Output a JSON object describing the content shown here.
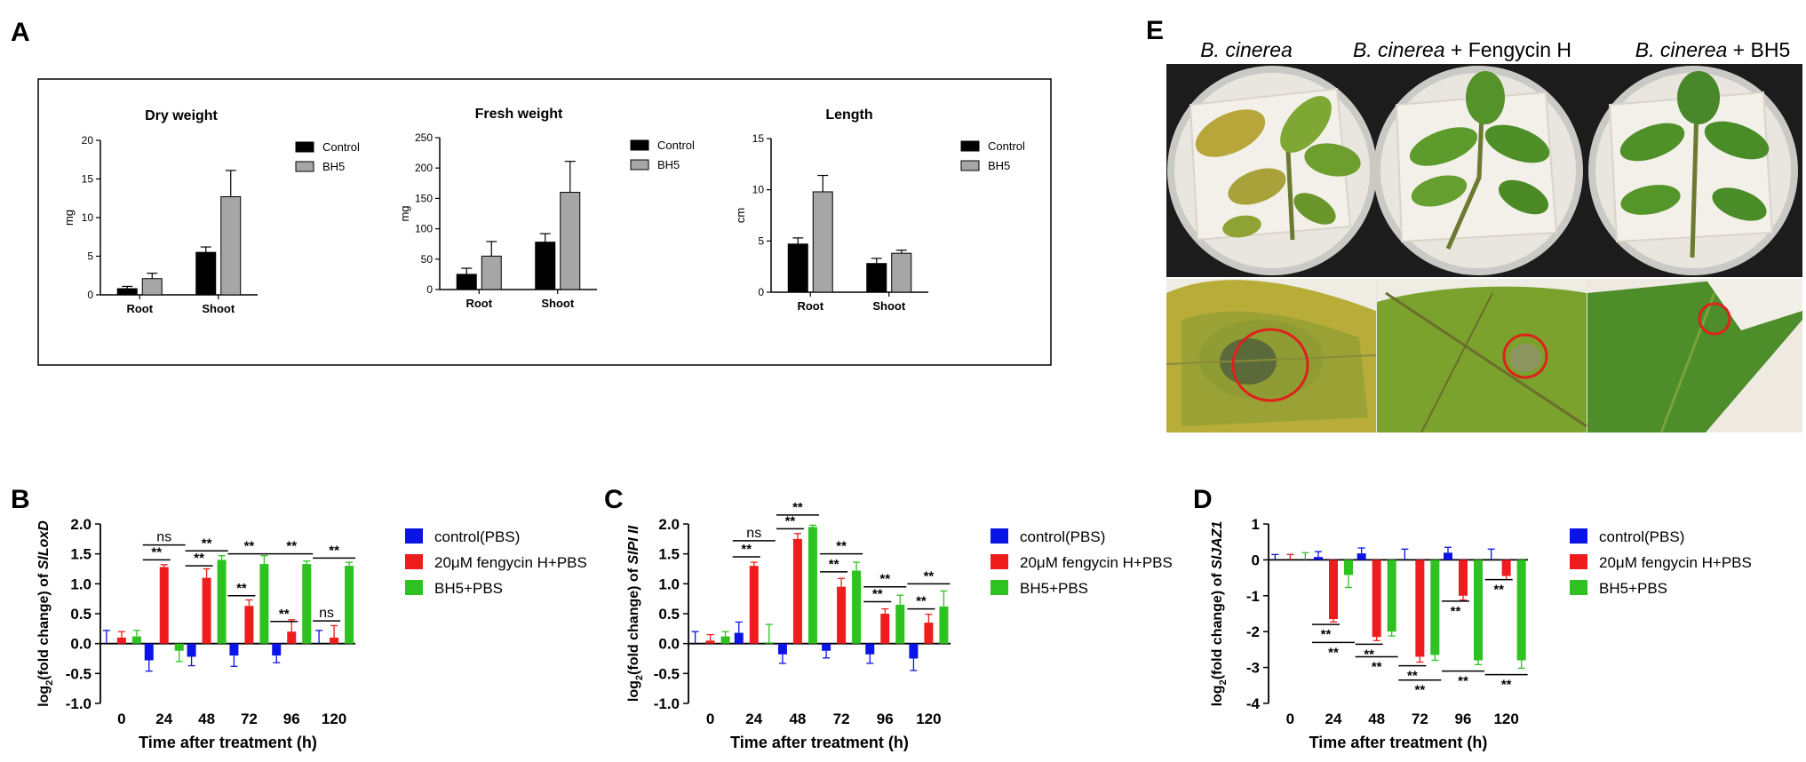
{
  "panels": {
    "A": "A",
    "B": "B",
    "C": "C",
    "D": "D",
    "E": "E"
  },
  "panel_e": {
    "column_labels": [
      {
        "italic": "B. cinerea",
        "plain": ""
      },
      {
        "italic": "B. cinerea",
        "plain": " + Fengycin H"
      },
      {
        "italic": "B. cinerea",
        "plain": " + BH5"
      }
    ],
    "colors": {
      "background_dark": "#1c1c1c",
      "leaf": "#4a8a28",
      "lesion_ring": "#e0201c",
      "paper": "#eeeae2"
    }
  },
  "chart_data": [
    {
      "id": "dry",
      "type": "bar",
      "title": "Dry weight",
      "ylabel": "mg",
      "xlabel": "",
      "ylim": [
        0,
        20
      ],
      "yticks": [
        0,
        5,
        10,
        15,
        20
      ],
      "categories": [
        "Root",
        "Shoot"
      ],
      "legend": [
        "Control",
        "BH5"
      ],
      "legend_position": "top-right",
      "colors": [
        "#000000",
        "#a6a6a6"
      ],
      "series": [
        {
          "name": "Control",
          "values": [
            0.8,
            5.5
          ],
          "errors": [
            0.3,
            0.7
          ]
        },
        {
          "name": "BH5",
          "values": [
            2.1,
            12.7
          ],
          "errors": [
            0.7,
            3.4
          ]
        }
      ]
    },
    {
      "id": "fresh",
      "type": "bar",
      "title": "Fresh weight",
      "ylabel": "mg",
      "xlabel": "",
      "ylim": [
        0,
        250
      ],
      "yticks": [
        0,
        50,
        100,
        150,
        200,
        250
      ],
      "categories": [
        "Root",
        "Shoot"
      ],
      "legend": [
        "Control",
        "BH5"
      ],
      "legend_position": "top-right",
      "colors": [
        "#000000",
        "#a6a6a6"
      ],
      "series": [
        {
          "name": "Control",
          "values": [
            25,
            78
          ],
          "errors": [
            10,
            14
          ]
        },
        {
          "name": "BH5",
          "values": [
            55,
            160
          ],
          "errors": [
            24,
            51
          ]
        }
      ]
    },
    {
      "id": "length",
      "type": "bar",
      "title": "Length",
      "ylabel": "cm",
      "xlabel": "",
      "ylim": [
        0,
        15
      ],
      "yticks": [
        0,
        5,
        10,
        15
      ],
      "categories": [
        "Root",
        "Shoot"
      ],
      "legend": [
        "Control",
        "BH5"
      ],
      "legend_position": "top-right",
      "colors": [
        "#000000",
        "#a6a6a6"
      ],
      "series": [
        {
          "name": "Control",
          "values": [
            4.7,
            2.8
          ],
          "errors": [
            0.6,
            0.5
          ]
        },
        {
          "name": "BH5",
          "values": [
            9.8,
            3.8
          ],
          "errors": [
            1.6,
            0.3
          ]
        }
      ]
    },
    {
      "id": "loxd",
      "type": "bar",
      "ylabel_pre": "log",
      "ylabel_sub": "2",
      "ylabel_post": "(fold change) of ",
      "ylabel_gene": "SlLoxD",
      "xlabel": "Time after treatment (h)",
      "ylim": [
        -1.0,
        2.0
      ],
      "yticks": [
        "2.0",
        "1.5",
        "1.0",
        "0.5",
        "0.0",
        "-0.5",
        "-1.0"
      ],
      "categories": [
        "0",
        "24",
        "48",
        "72",
        "96",
        "120"
      ],
      "legend": [
        "control(PBS)",
        "20μM fengycin H+PBS",
        "BH5+PBS"
      ],
      "legend_position": "right",
      "colors": [
        "#0a14e6",
        "#ee1c1c",
        "#2dc21f"
      ],
      "series": [
        {
          "name": "control(PBS)",
          "values": [
            0.0,
            -0.28,
            -0.22,
            -0.2,
            -0.2,
            0.0
          ],
          "errors": [
            0.22,
            0.18,
            0.15,
            0.18,
            0.12,
            0.22
          ]
        },
        {
          "name": "20μM fengycin H+PBS",
          "values": [
            0.1,
            1.28,
            1.1,
            0.63,
            0.2,
            0.1
          ],
          "errors": [
            0.1,
            0.04,
            0.15,
            0.1,
            0.2,
            0.2
          ]
        },
        {
          "name": "BH5+PBS",
          "values": [
            0.12,
            -0.12,
            1.4,
            1.33,
            1.33,
            1.3
          ],
          "errors": [
            0.1,
            0.18,
            0.07,
            0.14,
            0.05,
            0.06
          ]
        }
      ],
      "annotations": [
        {
          "label": "ns",
          "group": 1,
          "from": 0,
          "to": 2,
          "y": 1.65
        },
        {
          "label": "**",
          "group": 1,
          "from": 0,
          "to": 1,
          "y": 1.4
        },
        {
          "label": "**",
          "group": 2,
          "from": 0,
          "to": 2,
          "y": 1.55
        },
        {
          "label": "**",
          "group": 2,
          "from": 0,
          "to": 1,
          "y": 1.3
        },
        {
          "label": "**",
          "group": 3,
          "from": 0,
          "to": 2,
          "y": 1.5
        },
        {
          "label": "**",
          "group": 3,
          "from": 0,
          "to": 1,
          "y": 0.8
        },
        {
          "label": "**",
          "group": 4,
          "from": 0,
          "to": 2,
          "y": 1.5
        },
        {
          "label": "**",
          "group": 4,
          "from": 0,
          "to": 1,
          "y": 0.37
        },
        {
          "label": "**",
          "group": 5,
          "from": 0,
          "to": 2,
          "y": 1.43
        },
        {
          "label": "ns",
          "group": 5,
          "from": 0,
          "to": 1,
          "y": 0.38
        }
      ]
    },
    {
      "id": "pi2",
      "type": "bar",
      "ylabel_pre": "log",
      "ylabel_sub": "2",
      "ylabel_post": "(fold change) of ",
      "ylabel_gene": "SlPI II",
      "xlabel": "Time after treatment (h)",
      "ylim": [
        -1.0,
        2.0
      ],
      "yticks": [
        "2.0",
        "1.5",
        "1.0",
        "0.5",
        "0.0",
        "-0.5",
        "-1.0"
      ],
      "categories": [
        "0",
        "24",
        "48",
        "72",
        "96",
        "120"
      ],
      "legend": [
        "control(PBS)",
        "20μM fengycin H+PBS",
        "BH5+PBS"
      ],
      "legend_position": "right",
      "colors": [
        "#0a14e6",
        "#ee1c1c",
        "#2dc21f"
      ],
      "series": [
        {
          "name": "control(PBS)",
          "values": [
            0.0,
            0.18,
            -0.18,
            -0.12,
            -0.18,
            -0.25
          ],
          "errors": [
            0.2,
            0.18,
            0.15,
            0.12,
            0.15,
            0.2
          ]
        },
        {
          "name": "20μM fengycin H+PBS",
          "values": [
            0.05,
            1.3,
            1.75,
            0.95,
            0.5,
            0.35
          ],
          "errors": [
            0.1,
            0.06,
            0.09,
            0.14,
            0.08,
            0.14
          ]
        },
        {
          "name": "BH5+PBS",
          "values": [
            0.12,
            0.02,
            1.95,
            1.22,
            0.65,
            0.62
          ],
          "errors": [
            0.08,
            0.3,
            0.03,
            0.14,
            0.16,
            0.26
          ]
        }
      ],
      "annotations": [
        {
          "label": "ns",
          "group": 1,
          "from": 0,
          "to": 2,
          "y": 1.72
        },
        {
          "label": "**",
          "group": 1,
          "from": 0,
          "to": 1,
          "y": 1.45
        },
        {
          "label": "**",
          "group": 2,
          "from": 0,
          "to": 2,
          "y": 2.15
        },
        {
          "label": "**",
          "group": 2,
          "from": 0,
          "to": 1,
          "y": 1.92
        },
        {
          "label": "**",
          "group": 3,
          "from": 0,
          "to": 2,
          "y": 1.5
        },
        {
          "label": "**",
          "group": 3,
          "from": 0,
          "to": 1,
          "y": 1.2
        },
        {
          "label": "**",
          "group": 4,
          "from": 0,
          "to": 2,
          "y": 0.95
        },
        {
          "label": "**",
          "group": 4,
          "from": 0,
          "to": 1,
          "y": 0.7
        },
        {
          "label": "**",
          "group": 5,
          "from": 0,
          "to": 2,
          "y": 1.0
        },
        {
          "label": "**",
          "group": 5,
          "from": 0,
          "to": 1,
          "y": 0.58
        }
      ]
    },
    {
      "id": "jaz1",
      "type": "bar",
      "ylabel_pre": "log",
      "ylabel_sub": "2",
      "ylabel_post": "(fold change) of ",
      "ylabel_gene": "SlJAZ1",
      "xlabel": "Time after treatment (h)",
      "ylim": [
        -4,
        1
      ],
      "yticks": [
        "1",
        "0",
        "-1",
        "-2",
        "-3",
        "-4"
      ],
      "categories": [
        "0",
        "24",
        "48",
        "72",
        "96",
        "120"
      ],
      "legend": [
        "control(PBS)",
        "20μM fengycin H+PBS",
        "BH5+PBS"
      ],
      "legend_position": "right",
      "colors": [
        "#0a14e6",
        "#ee1c1c",
        "#2dc21f"
      ],
      "series": [
        {
          "name": "control(PBS)",
          "values": [
            0.0,
            0.08,
            0.18,
            0.0,
            0.2,
            0.0
          ],
          "errors": [
            0.15,
            0.15,
            0.15,
            0.3,
            0.15,
            0.3
          ]
        },
        {
          "name": "20μM fengycin H+PBS",
          "values": [
            0.0,
            -1.65,
            -2.15,
            -2.7,
            -1.0,
            -0.45
          ],
          "errors": [
            0.15,
            0.08,
            0.1,
            0.15,
            0.12,
            0.1
          ]
        },
        {
          "name": "BH5+PBS",
          "values": [
            0.0,
            -0.42,
            -2.0,
            -2.65,
            -2.8,
            -2.8
          ],
          "errors": [
            0.2,
            0.35,
            0.12,
            0.15,
            0.12,
            0.22
          ]
        }
      ],
      "annotations": [
        {
          "label": "**",
          "group": 1,
          "from": 0,
          "to": 1,
          "y": -1.8,
          "below": true
        },
        {
          "label": "**",
          "group": 1,
          "from": 0,
          "to": 2,
          "y": -2.3,
          "below": true
        },
        {
          "label": "**",
          "group": 2,
          "from": 0,
          "to": 1,
          "y": -2.35,
          "below": true
        },
        {
          "label": "**",
          "group": 2,
          "from": 0,
          "to": 2,
          "y": -2.7,
          "below": true
        },
        {
          "label": "**",
          "group": 3,
          "from": 0,
          "to": 1,
          "y": -2.95,
          "below": true
        },
        {
          "label": "**",
          "group": 3,
          "from": 0,
          "to": 2,
          "y": -3.35,
          "below": true
        },
        {
          "label": "**",
          "group": 4,
          "from": 0,
          "to": 1,
          "y": -1.15,
          "below": true
        },
        {
          "label": "**",
          "group": 4,
          "from": 0,
          "to": 2,
          "y": -3.1,
          "below": true
        },
        {
          "label": "**",
          "group": 5,
          "from": 0,
          "to": 1,
          "y": -0.55,
          "below": true
        },
        {
          "label": "**",
          "group": 5,
          "from": 0,
          "to": 2,
          "y": -3.2,
          "below": true
        }
      ]
    }
  ]
}
